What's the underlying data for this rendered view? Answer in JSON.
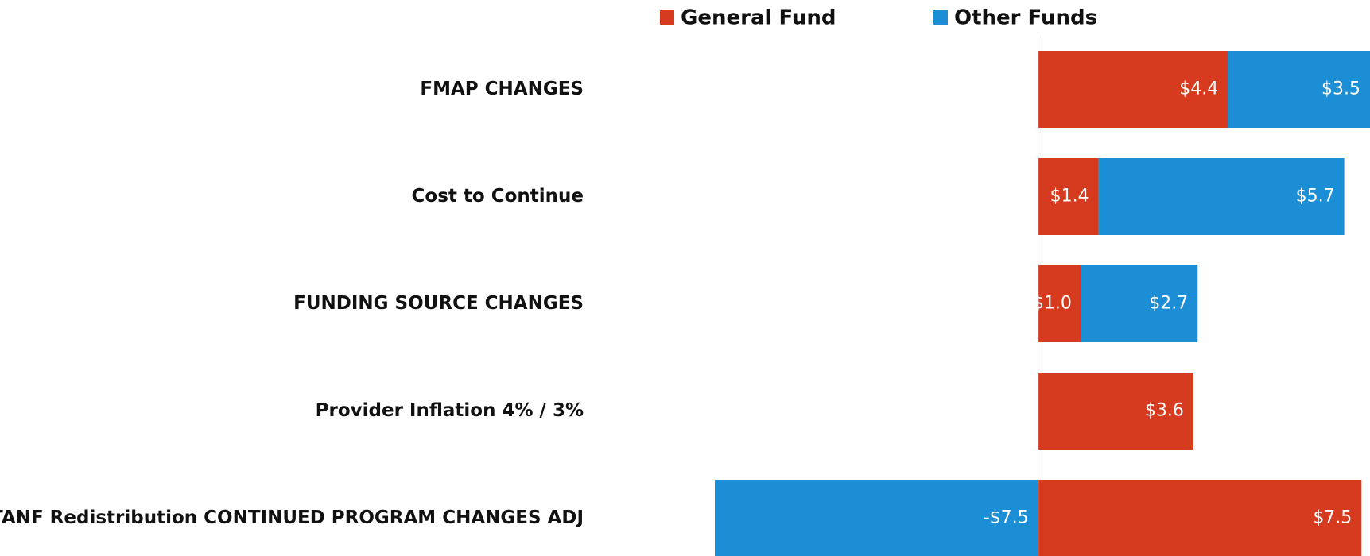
{
  "chart_data": {
    "type": "hbar-stacked",
    "categories": [
      "FMAP CHANGES",
      "Cost to Continue",
      "FUNDING SOURCE CHANGES",
      "Provider Inflation 4% / 3%",
      "TANF Redistribution CONTINUED PROGRAM CHANGES ADJ"
    ],
    "series": [
      {
        "name": "General Fund",
        "color": "#d63b1f",
        "values": [
          4.4,
          1.4,
          1.0,
          3.6,
          7.5
        ],
        "value_labels": [
          "$4.4",
          "$1.4",
          "$1.0",
          "$3.6",
          "$7.5"
        ]
      },
      {
        "name": "Other Funds",
        "color": "#1c8ed6",
        "values": [
          3.5,
          5.7,
          2.7,
          null,
          -7.5
        ],
        "value_labels": [
          "$3.5",
          "$5.7",
          "$2.7",
          null,
          "-$7.5"
        ]
      }
    ],
    "xlim": [
      -7.5,
      7.9
    ]
  }
}
